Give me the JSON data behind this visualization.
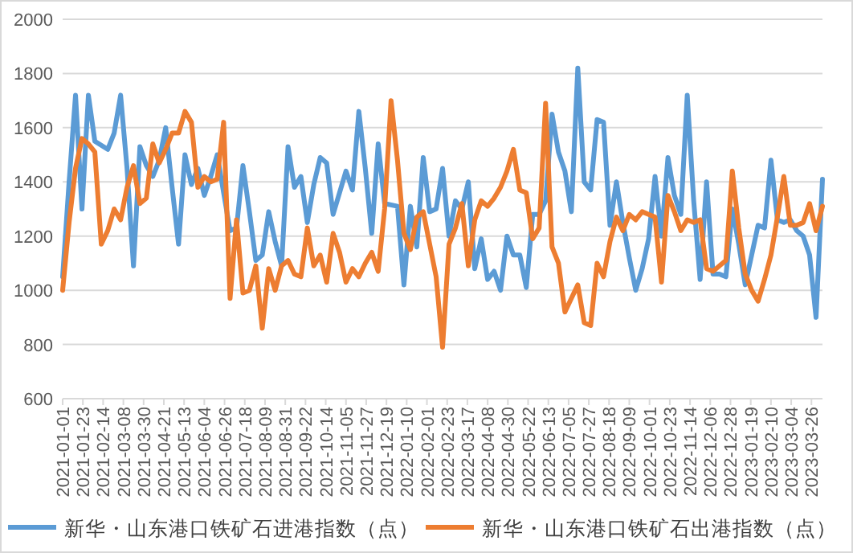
{
  "chart_data": {
    "type": "line",
    "legend": "bottom",
    "grid": "y",
    "line_style": "solid",
    "marker": "none",
    "x": [
      "2021-01-01",
      "2021-01-08",
      "2021-01-15",
      "2021-01-22",
      "2021-01-29",
      "2021-02-05",
      "2021-02-12",
      "2021-02-19",
      "2021-02-26",
      "2021-03-05",
      "2021-03-12",
      "2021-03-19",
      "2021-03-26",
      "2021-04-02",
      "2021-04-09",
      "2021-04-16",
      "2021-04-23",
      "2021-04-30",
      "2021-05-07",
      "2021-05-14",
      "2021-05-21",
      "2021-05-28",
      "2021-06-04",
      "2021-06-11",
      "2021-06-18",
      "2021-06-25",
      "2021-07-02",
      "2021-07-09",
      "2021-07-16",
      "2021-07-23",
      "2021-07-30",
      "2021-08-06",
      "2021-08-13",
      "2021-08-20",
      "2021-08-27",
      "2021-09-03",
      "2021-09-10",
      "2021-09-17",
      "2021-09-24",
      "2021-10-01",
      "2021-10-08",
      "2021-10-15",
      "2021-10-22",
      "2021-10-29",
      "2021-11-05",
      "2021-11-12",
      "2021-11-19",
      "2021-11-26",
      "2021-12-03",
      "2021-12-10",
      "2021-12-17",
      "2021-12-24",
      "2021-12-31",
      "2022-01-07",
      "2022-01-14",
      "2022-01-21",
      "2022-01-28",
      "2022-02-04",
      "2022-02-11",
      "2022-02-18",
      "2022-02-25",
      "2022-03-04",
      "2022-03-11",
      "2022-03-18",
      "2022-03-25",
      "2022-04-01",
      "2022-04-08",
      "2022-04-15",
      "2022-04-22",
      "2022-04-29",
      "2022-05-06",
      "2022-05-13",
      "2022-05-20",
      "2022-05-27",
      "2022-06-03",
      "2022-06-10",
      "2022-06-17",
      "2022-06-24",
      "2022-07-01",
      "2022-07-08",
      "2022-07-15",
      "2022-07-22",
      "2022-07-29",
      "2022-08-05",
      "2022-08-12",
      "2022-08-19",
      "2022-08-26",
      "2022-09-02",
      "2022-09-09",
      "2022-09-16",
      "2022-09-23",
      "2022-09-30",
      "2022-10-07",
      "2022-10-14",
      "2022-10-21",
      "2022-10-28",
      "2022-11-04",
      "2022-11-11",
      "2022-11-18",
      "2022-11-25",
      "2022-12-02",
      "2022-12-09",
      "2022-12-16",
      "2022-12-23",
      "2022-12-30",
      "2023-01-06",
      "2023-01-13",
      "2023-01-20",
      "2023-01-27",
      "2023-02-03",
      "2023-02-10",
      "2023-02-17",
      "2023-02-24",
      "2023-03-03",
      "2023-03-10",
      "2023-03-17",
      "2023-03-24",
      "2023-03-31",
      "2023-04-07"
    ],
    "xlim": [
      "2021-01-01",
      "2023-04-07"
    ],
    "xticks": [
      "2021-01-01",
      "2021-01-23",
      "2021-02-14",
      "2021-03-08",
      "2021-03-30",
      "2021-04-21",
      "2021-05-13",
      "2021-06-04",
      "2021-06-26",
      "2021-07-18",
      "2021-08-09",
      "2021-08-31",
      "2021-09-22",
      "2021-10-14",
      "2021-11-05",
      "2021-11-27",
      "2021-12-19",
      "2022-01-10",
      "2022-02-01",
      "2022-02-23",
      "2022-03-17",
      "2022-04-08",
      "2022-04-30",
      "2022-05-22",
      "2022-06-13",
      "2022-07-05",
      "2022-07-27",
      "2022-08-18",
      "2022-09-09",
      "2022-10-01",
      "2022-10-23",
      "2022-11-14",
      "2022-12-06",
      "2022-12-28",
      "2023-01-19",
      "2023-02-10",
      "2023-03-04",
      "2023-03-26"
    ],
    "ylim": [
      600,
      2000
    ],
    "yticks": [
      600,
      800,
      1000,
      1200,
      1400,
      1600,
      1800,
      2000
    ],
    "series": [
      {
        "name": "新华・山东港口铁矿石进港指数（点）",
        "color": "#5b9bd5",
        "values": [
          1050,
          1400,
          1720,
          1300,
          1720,
          1550,
          null,
          1520,
          1580,
          1720,
          1450,
          1090,
          1530,
          1460,
          1420,
          1480,
          1600,
          1380,
          1170,
          1500,
          1390,
          1450,
          1350,
          1420,
          1500,
          null,
          1220,
          1230,
          1460,
          1290,
          1110,
          1130,
          1290,
          1180,
          1090,
          1530,
          1380,
          1420,
          1250,
          1390,
          1490,
          1470,
          1280,
          1360,
          1440,
          1370,
          1660,
          1450,
          1210,
          1540,
          1320,
          null,
          1310,
          1020,
          1310,
          1160,
          1490,
          1290,
          1300,
          1450,
          1200,
          1330,
          1300,
          1400,
          1080,
          1190,
          1040,
          1070,
          1000,
          1200,
          1130,
          1130,
          1010,
          1280,
          1280,
          1330,
          1650,
          1510,
          1440,
          1290,
          1820,
          1400,
          1370,
          1630,
          1620,
          1240,
          1400,
          1250,
          1120,
          1000,
          1080,
          1190,
          1420,
          1200,
          1490,
          1350,
          1280,
          1720,
          1330,
          1040,
          1400,
          1060,
          1060,
          1050,
          1300,
          1170,
          1020,
          1130,
          1240,
          1230,
          1480,
          1260,
          1250,
          1260,
          1220,
          1200,
          1130,
          900,
          1410
        ]
      },
      {
        "name": "新华・山东港口铁矿石出港指数（点）",
        "color": "#ed7d31",
        "values": [
          1000,
          1250,
          1450,
          1560,
          1540,
          1510,
          1170,
          1220,
          1300,
          1260,
          1380,
          1460,
          1320,
          1340,
          1540,
          1470,
          1520,
          1580,
          1580,
          1660,
          1620,
          1380,
          1420,
          1400,
          1410,
          1620,
          970,
          1260,
          990,
          1000,
          1090,
          860,
          1080,
          1000,
          1090,
          1110,
          1060,
          1050,
          1230,
          1090,
          1130,
          1030,
          1210,
          1140,
          1030,
          1080,
          1050,
          1100,
          1140,
          1070,
          1300,
          1700,
          1480,
          1210,
          1150,
          1270,
          1290,
          1170,
          1050,
          790,
          1170,
          1230,
          1320,
          1090,
          1260,
          1330,
          1310,
          1340,
          1380,
          1440,
          1520,
          1370,
          1360,
          1190,
          1230,
          1690,
          1160,
          1100,
          920,
          970,
          1020,
          880,
          870,
          1100,
          1050,
          1180,
          1270,
          1220,
          1280,
          1260,
          1290,
          1280,
          1270,
          1030,
          1350,
          1290,
          1220,
          1260,
          1250,
          1260,
          1080,
          1070,
          1090,
          1110,
          1440,
          1230,
          1060,
          1000,
          960,
          1040,
          1130,
          1270,
          1420,
          1240,
          1240,
          1250,
          1320,
          1220,
          1310
        ]
      }
    ]
  }
}
